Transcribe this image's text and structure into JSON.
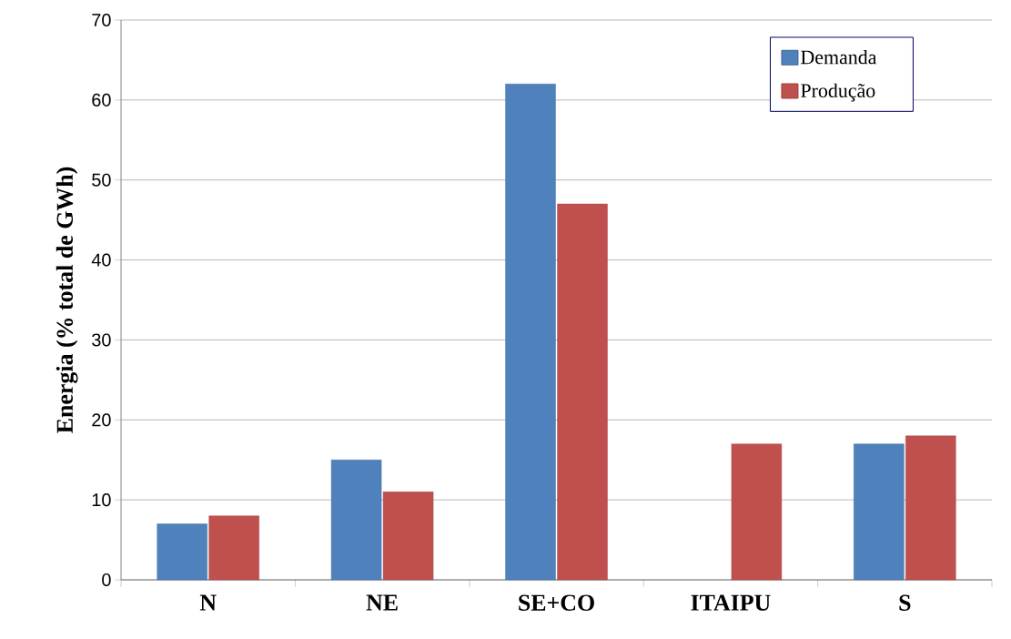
{
  "chart_data": {
    "type": "bar",
    "ylabel": "Energia (% total de GWh)",
    "categories": [
      "N",
      "NE",
      "SE+CO",
      "ITAIPU",
      "S"
    ],
    "series": [
      {
        "name": "Demanda",
        "color": "#4f81bd",
        "values": [
          7,
          15,
          62,
          null,
          17
        ]
      },
      {
        "name": "Produção",
        "color": "#c0504d",
        "values": [
          8,
          11,
          47,
          17,
          18
        ]
      }
    ],
    "ylim": [
      0,
      70
    ],
    "yticks": [
      0,
      10,
      20,
      30,
      40,
      50,
      60,
      70
    ],
    "grid": "y",
    "legend": "top right"
  }
}
